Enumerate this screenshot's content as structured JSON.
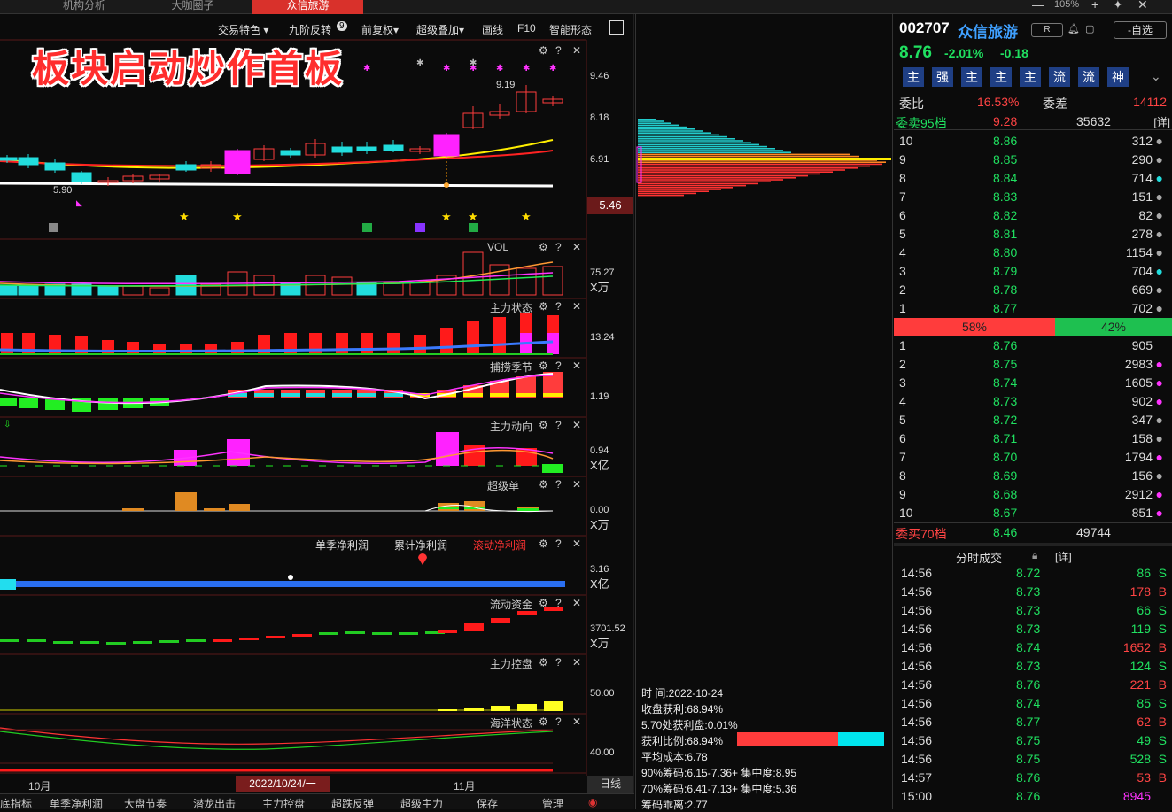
{
  "tabs": [
    {
      "label": "机构分析"
    },
    {
      "label": "大咖圈子"
    },
    {
      "label": "众信旅游"
    }
  ],
  "zoom": "105%",
  "toolbar": {
    "items": [
      "交易特色 ▾",
      "九阶反转",
      "前复权▾",
      "超级叠加▾",
      "画线",
      "F10",
      "智能形态"
    ],
    "badge": "9"
  },
  "headline": "板块启动炒作首板",
  "main_chart": {
    "axis": [
      "9.46",
      "8.18",
      "6.91"
    ],
    "price_box": "5.46",
    "hi_label": "9.19",
    "lo_label": "5.90"
  },
  "panels": [
    {
      "title": "VOL",
      "axis": [
        "75.27",
        "X万"
      ]
    },
    {
      "title": "主力状态",
      "axis": [
        "13.24"
      ]
    },
    {
      "title": "捕捞季节",
      "axis": [
        "1.19"
      ]
    },
    {
      "title": "主力动向",
      "axis": [
        "0.94",
        "X亿"
      ]
    },
    {
      "title": "超级单",
      "axis": [
        "0.00",
        "X万"
      ]
    },
    {
      "title": "",
      "axis": [
        "3.16",
        "X亿"
      ]
    },
    {
      "title": "流动资金",
      "axis": [
        "3701.52",
        "X万"
      ]
    },
    {
      "title": "主力控盘",
      "axis": [
        "50.00"
      ]
    },
    {
      "title": "海洋状态",
      "axis": [
        "40.00"
      ]
    }
  ],
  "profit_legend": [
    "单季净利润",
    "累计净利润",
    "滚动净利润"
  ],
  "xaxis": {
    "labels": [
      "10月",
      "11月"
    ],
    "selected": "2022/10/24/一",
    "range_btn": "日线"
  },
  "bottom_tabs": [
    "底指标",
    "单季净利润",
    "大盘节奏",
    "潜龙出击",
    "主力控盘",
    "超跌反弹",
    "超级主力",
    "保存",
    "管理"
  ],
  "chip": {
    "lines": [
      "时      间:2022-10-24",
      "收盘获利:68.94%",
      "5.70处获利盘:0.01%",
      "获利比例:68.94%",
      "平均成本:6.78",
      "90%筹码:6.15-7.36+ 集中度:8.95",
      "70%筹码:6.41-7.13+ 集中度:5.36",
      "筹码乖离:2.77"
    ]
  },
  "quote": {
    "code": "002707",
    "name": "众信旅游",
    "badge": "R",
    "watch": "-自选",
    "price": "8.76",
    "pct": "-2.01%",
    "chg": "-0.18",
    "tags": [
      "主",
      "强",
      "主",
      "主",
      "主",
      "流",
      "流",
      "神"
    ],
    "weibi_label": "委比",
    "weibi": "16.53%",
    "weicha_label": "委差",
    "weicha": "14112",
    "sell_label": "委卖95档",
    "sell_price": "9.28",
    "sell_vol": "35632",
    "detail": "[详]",
    "asks": [
      {
        "lv": "10",
        "p": "8.86",
        "v": "312"
      },
      {
        "lv": "9",
        "p": "8.85",
        "v": "290"
      },
      {
        "lv": "8",
        "p": "8.84",
        "v": "714"
      },
      {
        "lv": "7",
        "p": "8.83",
        "v": "151"
      },
      {
        "lv": "6",
        "p": "8.82",
        "v": "82"
      },
      {
        "lv": "5",
        "p": "8.81",
        "v": "278"
      },
      {
        "lv": "4",
        "p": "8.80",
        "v": "1154"
      },
      {
        "lv": "3",
        "p": "8.79",
        "v": "704"
      },
      {
        "lv": "2",
        "p": "8.78",
        "v": "669"
      },
      {
        "lv": "1",
        "p": "8.77",
        "v": "702"
      }
    ],
    "ratio": {
      "buy": "58%",
      "sell": "42%",
      "buy_fraction": 0.58
    },
    "bids": [
      {
        "lv": "1",
        "p": "8.76",
        "v": "905"
      },
      {
        "lv": "2",
        "p": "8.75",
        "v": "2983"
      },
      {
        "lv": "3",
        "p": "8.74",
        "v": "1605"
      },
      {
        "lv": "4",
        "p": "8.73",
        "v": "902"
      },
      {
        "lv": "5",
        "p": "8.72",
        "v": "347"
      },
      {
        "lv": "6",
        "p": "8.71",
        "v": "158"
      },
      {
        "lv": "7",
        "p": "8.70",
        "v": "1794"
      },
      {
        "lv": "8",
        "p": "8.69",
        "v": "156"
      },
      {
        "lv": "9",
        "p": "8.68",
        "v": "2912"
      },
      {
        "lv": "10",
        "p": "8.67",
        "v": "851"
      }
    ],
    "buy_label": "委买70档",
    "buy_price": "8.46",
    "buy_vol": "49744",
    "ticks_title": "分时成交",
    "ticks": [
      {
        "t": "14:56",
        "p": "8.72",
        "v": "86",
        "s": "S"
      },
      {
        "t": "14:56",
        "p": "8.73",
        "v": "178",
        "s": "B"
      },
      {
        "t": "14:56",
        "p": "8.73",
        "v": "66",
        "s": "S"
      },
      {
        "t": "14:56",
        "p": "8.73",
        "v": "119",
        "s": "S"
      },
      {
        "t": "14:56",
        "p": "8.74",
        "v": "1652",
        "s": "B"
      },
      {
        "t": "14:56",
        "p": "8.73",
        "v": "124",
        "s": "S"
      },
      {
        "t": "14:56",
        "p": "8.76",
        "v": "221",
        "s": "B"
      },
      {
        "t": "14:56",
        "p": "8.74",
        "v": "85",
        "s": "S"
      },
      {
        "t": "14:56",
        "p": "8.77",
        "v": "62",
        "s": "B"
      },
      {
        "t": "14:56",
        "p": "8.75",
        "v": "49",
        "s": "S"
      },
      {
        "t": "14:56",
        "p": "8.75",
        "v": "528",
        "s": "S"
      },
      {
        "t": "14:57",
        "p": "8.76",
        "v": "53",
        "s": "B"
      },
      {
        "t": "15:00",
        "p": "8.76",
        "v": "8945",
        "s": ""
      }
    ]
  }
}
